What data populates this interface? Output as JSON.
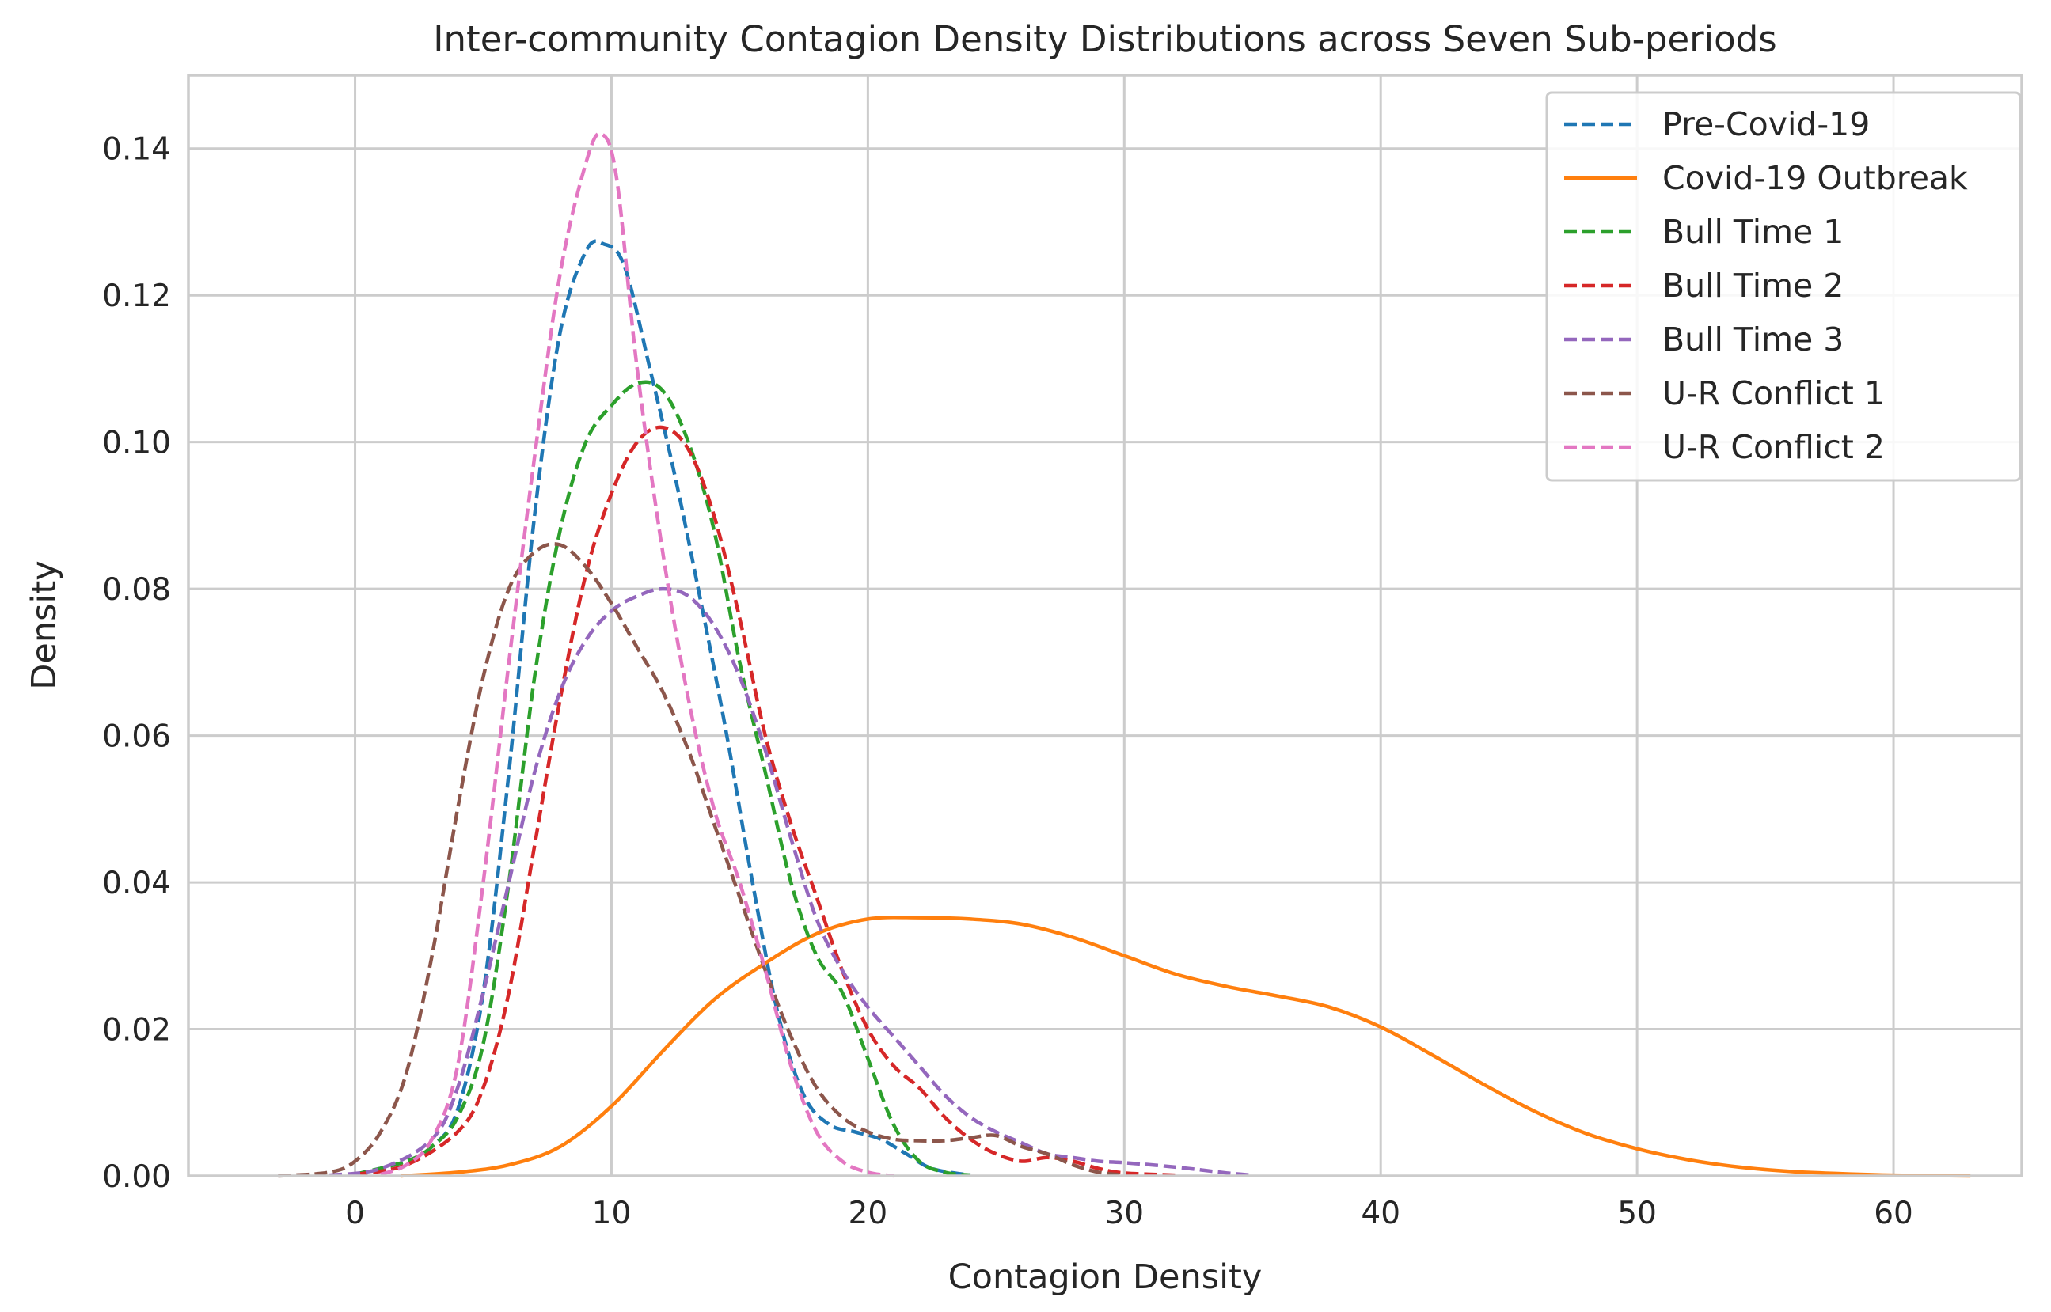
{
  "chart_data": {
    "type": "line",
    "title": "Inter-community Contagion Density Distributions across Seven Sub-periods",
    "xlabel": "Contagion Density",
    "ylabel": "Density",
    "xlim": [
      -6.5,
      65
    ],
    "ylim": [
      0,
      0.15
    ],
    "xticks": [
      0,
      10,
      20,
      30,
      40,
      50,
      60
    ],
    "yticks": [
      0.0,
      0.02,
      0.04,
      0.06,
      0.08,
      0.1,
      0.12,
      0.14
    ],
    "xtick_labels": [
      "0",
      "10",
      "20",
      "30",
      "40",
      "50",
      "60"
    ],
    "ytick_labels": [
      "0.00",
      "0.02",
      "0.04",
      "0.06",
      "0.08",
      "0.10",
      "0.12",
      "0.14"
    ],
    "grid": true,
    "legend_position": "top-right",
    "series": [
      {
        "name": "Pre-Covid-19",
        "color": "#1f77b4",
        "style": "dashed",
        "points": [
          [
            0,
            0.0002
          ],
          [
            2,
            0.002
          ],
          [
            3,
            0.004
          ],
          [
            4,
            0.009
          ],
          [
            5,
            0.025
          ],
          [
            6,
            0.055
          ],
          [
            7,
            0.09
          ],
          [
            8,
            0.115
          ],
          [
            9,
            0.126
          ],
          [
            9.7,
            0.127
          ],
          [
            10.5,
            0.124
          ],
          [
            11.5,
            0.11
          ],
          [
            12.5,
            0.095
          ],
          [
            13.5,
            0.078
          ],
          [
            14.5,
            0.06
          ],
          [
            15.5,
            0.04
          ],
          [
            16.5,
            0.022
          ],
          [
            17.5,
            0.011
          ],
          [
            18.5,
            0.007
          ],
          [
            19.5,
            0.006
          ],
          [
            20.5,
            0.005
          ],
          [
            21.5,
            0.003
          ],
          [
            22.5,
            0.001
          ],
          [
            24,
            0.0001
          ]
        ]
      },
      {
        "name": "Covid-19 Outbreak",
        "color": "#ff7f0e",
        "style": "solid",
        "points": [
          [
            1.8,
            0.0
          ],
          [
            4,
            0.0005
          ],
          [
            6,
            0.0015
          ],
          [
            8,
            0.004
          ],
          [
            10,
            0.0095
          ],
          [
            12,
            0.017
          ],
          [
            14,
            0.024
          ],
          [
            16,
            0.029
          ],
          [
            18,
            0.033
          ],
          [
            20,
            0.035
          ],
          [
            22,
            0.0352
          ],
          [
            24,
            0.035
          ],
          [
            26,
            0.0343
          ],
          [
            28,
            0.0325
          ],
          [
            30,
            0.03
          ],
          [
            32,
            0.0275
          ],
          [
            34,
            0.0258
          ],
          [
            36,
            0.0245
          ],
          [
            38,
            0.023
          ],
          [
            40,
            0.0203
          ],
          [
            42,
            0.0165
          ],
          [
            44,
            0.0125
          ],
          [
            46,
            0.0088
          ],
          [
            48,
            0.0058
          ],
          [
            50,
            0.0037
          ],
          [
            52,
            0.0022
          ],
          [
            54,
            0.0012
          ],
          [
            56,
            0.0006
          ],
          [
            58,
            0.0003
          ],
          [
            60,
            0.0001
          ],
          [
            63,
            0.0
          ]
        ]
      },
      {
        "name": "Bull Time 1",
        "color": "#2ca02c",
        "style": "dashed",
        "points": [
          [
            0,
            0.0002
          ],
          [
            2,
            0.002
          ],
          [
            3,
            0.004
          ],
          [
            4,
            0.008
          ],
          [
            5,
            0.018
          ],
          [
            6,
            0.04
          ],
          [
            7,
            0.068
          ],
          [
            8,
            0.088
          ],
          [
            9,
            0.1
          ],
          [
            10,
            0.105
          ],
          [
            11,
            0.108
          ],
          [
            12,
            0.107
          ],
          [
            13,
            0.1
          ],
          [
            14,
            0.088
          ],
          [
            15,
            0.07
          ],
          [
            16,
            0.055
          ],
          [
            17,
            0.04
          ],
          [
            18,
            0.03
          ],
          [
            19,
            0.025
          ],
          [
            20,
            0.016
          ],
          [
            21,
            0.007
          ],
          [
            22,
            0.002
          ],
          [
            23,
            0.0005
          ],
          [
            24,
            0.0001
          ]
        ]
      },
      {
        "name": "Bull Time 2",
        "color": "#d62728",
        "style": "dashed",
        "points": [
          [
            0,
            0.0002
          ],
          [
            2,
            0.0015
          ],
          [
            4,
            0.006
          ],
          [
            5,
            0.012
          ],
          [
            6,
            0.025
          ],
          [
            7,
            0.045
          ],
          [
            8,
            0.065
          ],
          [
            9,
            0.082
          ],
          [
            10,
            0.093
          ],
          [
            11,
            0.1
          ],
          [
            12,
            0.102
          ],
          [
            13,
            0.099
          ],
          [
            14,
            0.09
          ],
          [
            15,
            0.076
          ],
          [
            16,
            0.06
          ],
          [
            17,
            0.048
          ],
          [
            18,
            0.038
          ],
          [
            19,
            0.028
          ],
          [
            20,
            0.02
          ],
          [
            21,
            0.015
          ],
          [
            22,
            0.012
          ],
          [
            23,
            0.008
          ],
          [
            24,
            0.005
          ],
          [
            25,
            0.003
          ],
          [
            26,
            0.002
          ],
          [
            27,
            0.0025
          ],
          [
            28,
            0.002
          ],
          [
            29,
            0.001
          ],
          [
            30,
            0.0004
          ],
          [
            32,
            0.0001
          ]
        ]
      },
      {
        "name": "Bull Time 3",
        "color": "#9467bd",
        "style": "dashed",
        "points": [
          [
            -1,
            0.0001
          ],
          [
            1,
            0.001
          ],
          [
            3,
            0.005
          ],
          [
            4,
            0.012
          ],
          [
            5,
            0.025
          ],
          [
            6,
            0.04
          ],
          [
            7,
            0.055
          ],
          [
            8,
            0.066
          ],
          [
            9,
            0.073
          ],
          [
            10,
            0.077
          ],
          [
            11,
            0.079
          ],
          [
            12,
            0.08
          ],
          [
            13,
            0.079
          ],
          [
            14,
            0.075
          ],
          [
            15,
            0.068
          ],
          [
            16,
            0.058
          ],
          [
            17,
            0.046
          ],
          [
            18,
            0.035
          ],
          [
            19,
            0.028
          ],
          [
            20,
            0.023
          ],
          [
            21,
            0.019
          ],
          [
            22,
            0.015
          ],
          [
            23,
            0.011
          ],
          [
            24,
            0.008
          ],
          [
            25,
            0.006
          ],
          [
            26,
            0.0045
          ],
          [
            27,
            0.003
          ],
          [
            28,
            0.0025
          ],
          [
            29,
            0.002
          ],
          [
            30,
            0.0018
          ],
          [
            32,
            0.0012
          ],
          [
            34,
            0.0004
          ],
          [
            35,
            0.0001
          ]
        ]
      },
      {
        "name": "U-R Conflict 1",
        "color": "#8c564b",
        "style": "dashed",
        "points": [
          [
            -3,
            0.0
          ],
          [
            -1,
            0.0005
          ],
          [
            0,
            0.002
          ],
          [
            1,
            0.006
          ],
          [
            2,
            0.014
          ],
          [
            3,
            0.03
          ],
          [
            4,
            0.05
          ],
          [
            5,
            0.068
          ],
          [
            6,
            0.08
          ],
          [
            7,
            0.085
          ],
          [
            8,
            0.086
          ],
          [
            9,
            0.083
          ],
          [
            10,
            0.078
          ],
          [
            11,
            0.072
          ],
          [
            12,
            0.066
          ],
          [
            13,
            0.058
          ],
          [
            14,
            0.048
          ],
          [
            15,
            0.038
          ],
          [
            16,
            0.028
          ],
          [
            17,
            0.019
          ],
          [
            18,
            0.012
          ],
          [
            19,
            0.008
          ],
          [
            20,
            0.006
          ],
          [
            21,
            0.005
          ],
          [
            22,
            0.0048
          ],
          [
            23,
            0.0048
          ],
          [
            24,
            0.0052
          ],
          [
            25,
            0.0055
          ],
          [
            26,
            0.004
          ],
          [
            27,
            0.003
          ],
          [
            28,
            0.0015
          ],
          [
            29,
            0.0005
          ],
          [
            30,
            0.0001
          ]
        ]
      },
      {
        "name": "U-R Conflict 2",
        "color": "#e377c2",
        "style": "dashed",
        "points": [
          [
            1,
            0.0002
          ],
          [
            2,
            0.0015
          ],
          [
            3,
            0.005
          ],
          [
            4,
            0.015
          ],
          [
            5,
            0.04
          ],
          [
            6,
            0.07
          ],
          [
            7,
            0.098
          ],
          [
            8,
            0.123
          ],
          [
            9,
            0.138
          ],
          [
            9.6,
            0.142
          ],
          [
            10.2,
            0.136
          ],
          [
            11,
            0.11
          ],
          [
            12,
            0.085
          ],
          [
            13,
            0.065
          ],
          [
            14,
            0.05
          ],
          [
            15,
            0.04
          ],
          [
            16,
            0.028
          ],
          [
            17,
            0.015
          ],
          [
            18,
            0.006
          ],
          [
            19,
            0.002
          ],
          [
            20,
            0.0005
          ],
          [
            21,
            0.0
          ]
        ]
      }
    ]
  }
}
